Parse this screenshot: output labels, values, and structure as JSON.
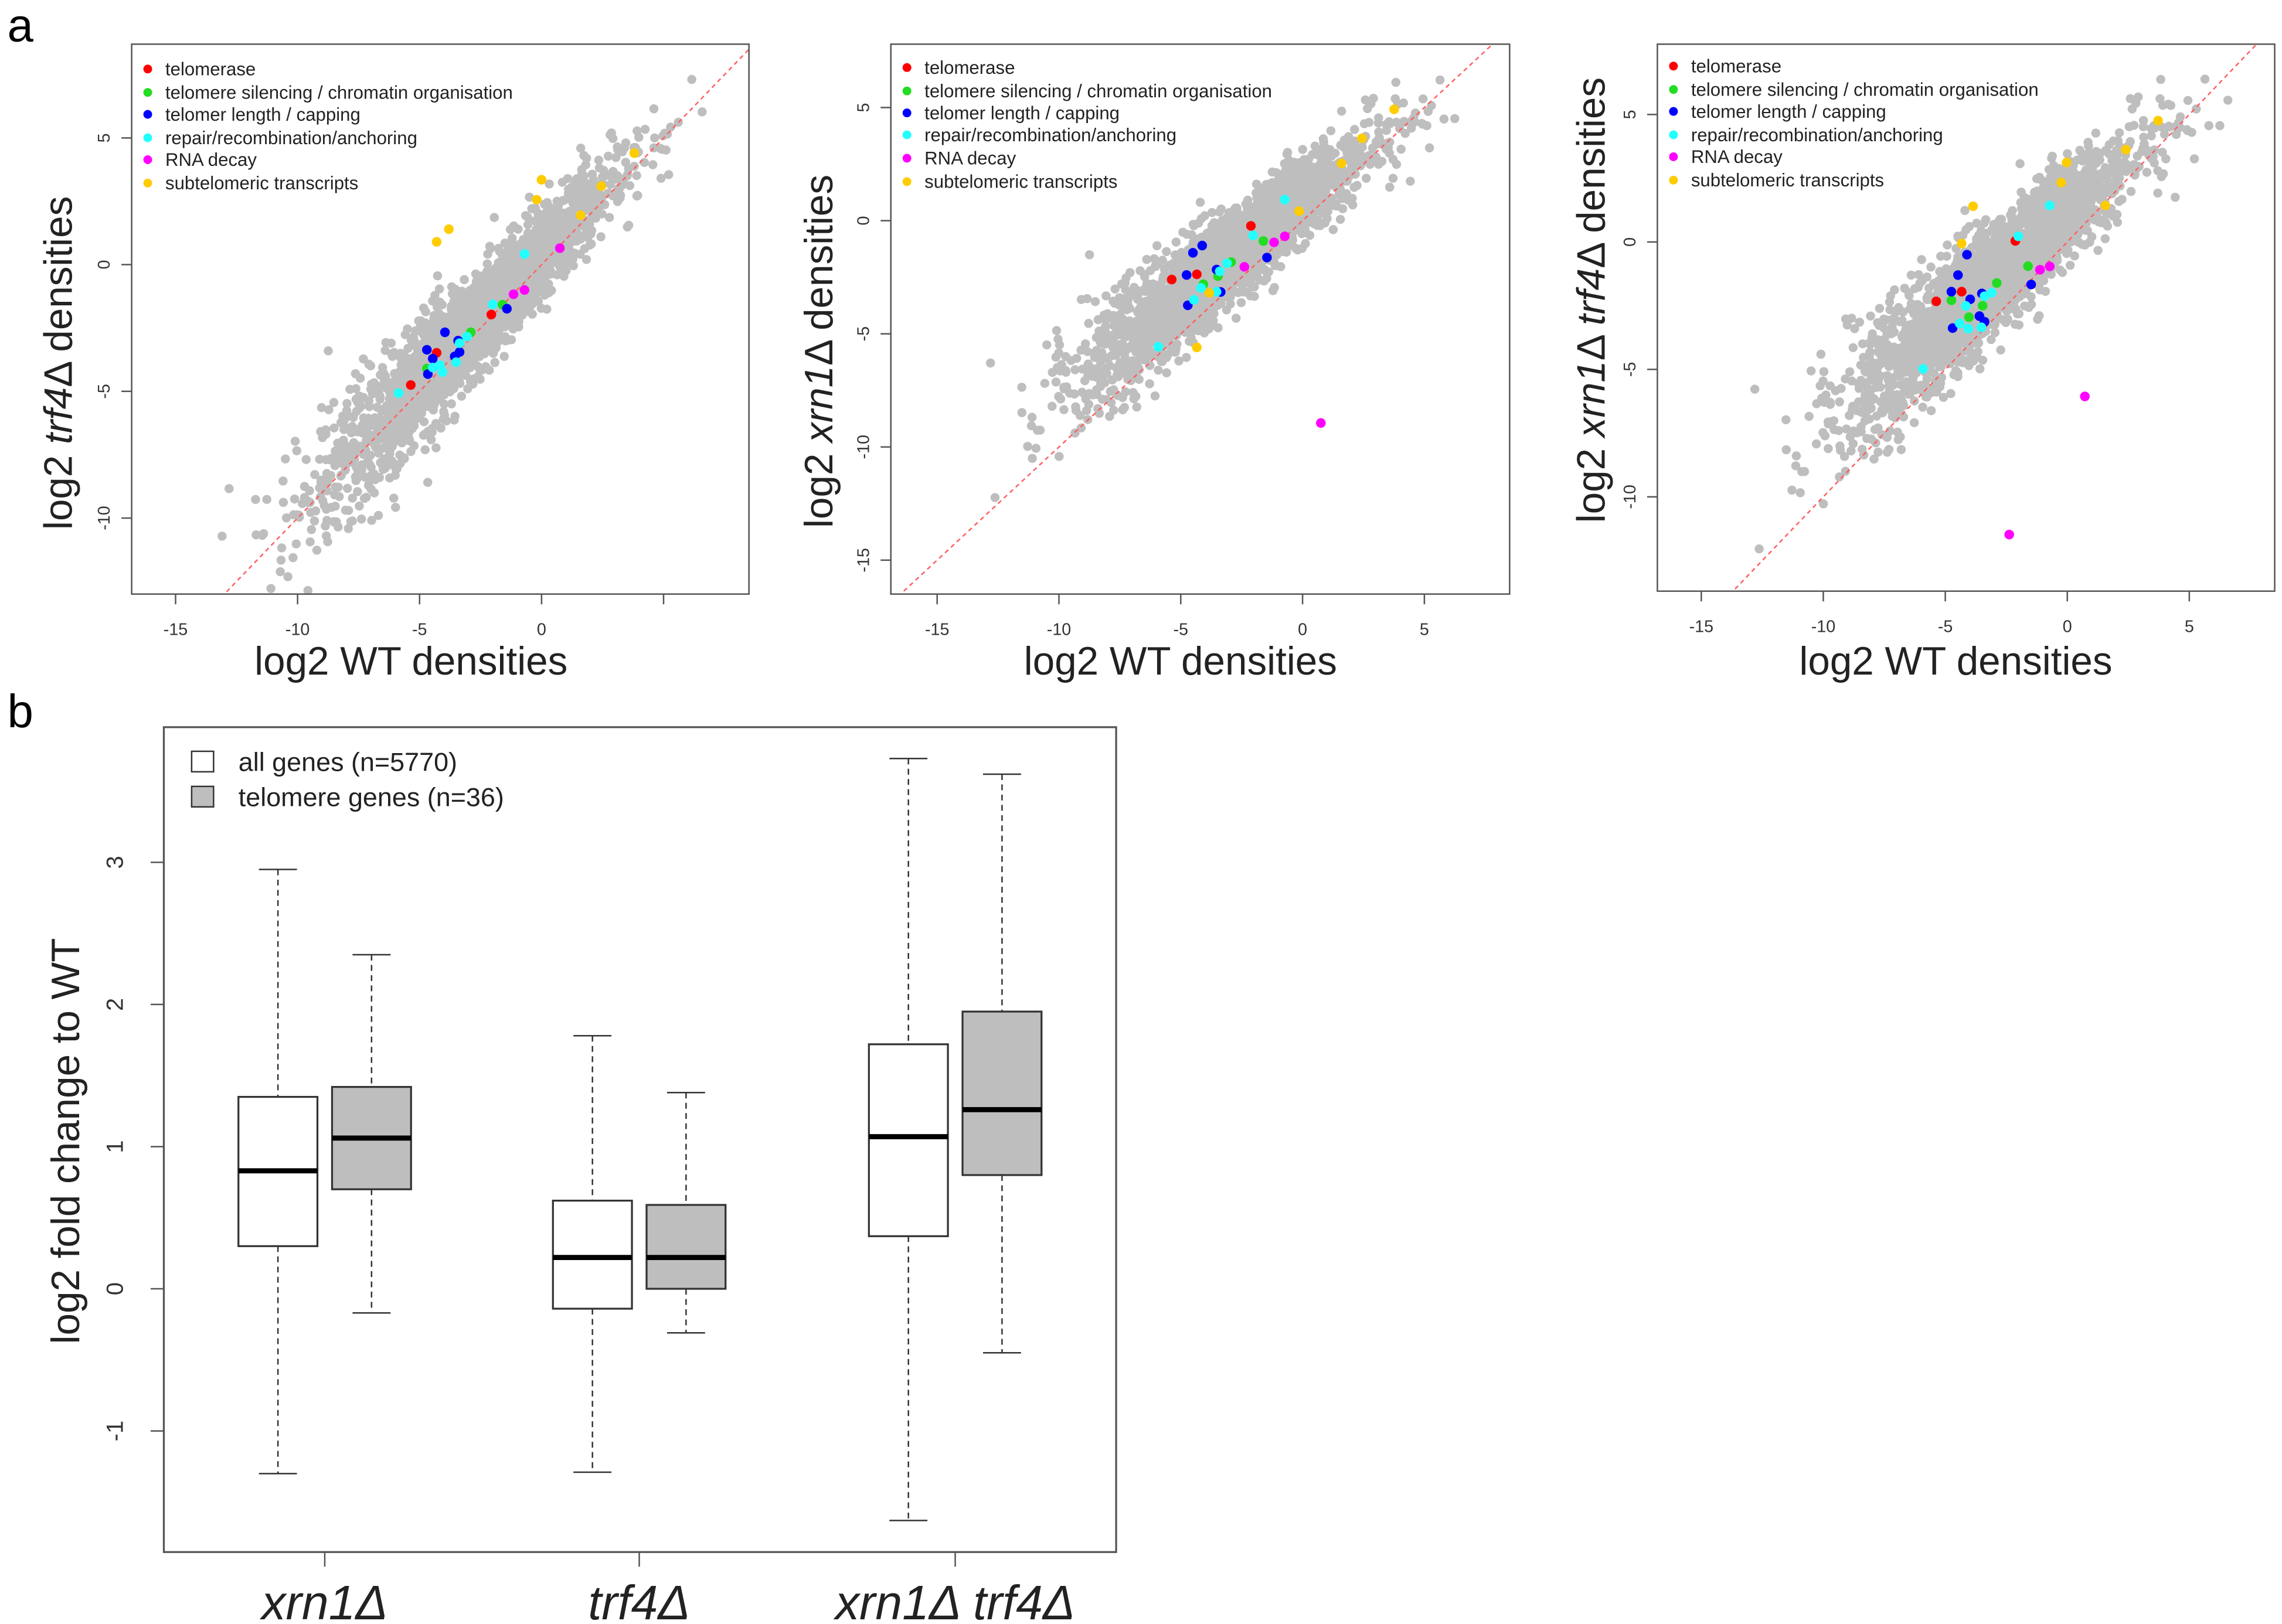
{
  "panel_labels": {
    "a": "a",
    "b": "b"
  },
  "chart_data": [
    {
      "type": "scatter",
      "xlabel": "log2 WT densities",
      "ylabel_parts": [
        {
          "t": "log2 ",
          "i": false
        },
        {
          "t": "trf4",
          "i": true
        },
        {
          "t": "Δ densities",
          "i": false
        }
      ],
      "xlim": [
        -16.8,
        8.5
      ],
      "ylim": [
        -13.0,
        8.7
      ],
      "xticks": [
        -15,
        -10,
        -5,
        0,
        5
      ],
      "xtick_labels": [
        "-15",
        "-10",
        "-5",
        "0",
        ""
      ],
      "yticks": [
        -10,
        -5,
        0,
        5
      ],
      "ytick_labels": [
        "-10",
        "-5",
        "0",
        "5"
      ],
      "reference_line": "y = x (red dashed)",
      "legend_position": "top-left",
      "background_cloud": {
        "color": "#bebebe",
        "approx_n": 5770
      },
      "series": [
        {
          "name": "telomerase",
          "color": "#ff0000",
          "points": [
            [
              -2.06,
              -1.97
            ],
            [
              -4.3,
              -3.48
            ],
            [
              -5.36,
              -4.75
            ]
          ]
        },
        {
          "name": "telomere silencing / chromatin organisation",
          "color": "#22dd22",
          "points": [
            [
              -2.9,
              -2.67
            ],
            [
              -1.6,
              -1.58
            ],
            [
              -4.7,
              -4.1
            ]
          ]
        },
        {
          "name": "telomer length / capping",
          "color": "#0000ff",
          "points": [
            [
              -1.42,
              -1.74
            ],
            [
              -3.96,
              -2.67
            ],
            [
              -4.7,
              -3.36
            ],
            [
              -4.46,
              -3.71
            ],
            [
              -3.42,
              -3.0
            ],
            [
              -3.36,
              -3.45
            ],
            [
              -4.66,
              -4.32
            ],
            [
              -3.56,
              -3.62
            ]
          ]
        },
        {
          "name": "repair/recombination/anchoring",
          "color": "#22ffff",
          "points": [
            [
              -0.7,
              0.42
            ],
            [
              -2.0,
              -1.57
            ],
            [
              -3.06,
              -2.84
            ],
            [
              -3.36,
              -3.1
            ],
            [
              -3.5,
              -3.85
            ],
            [
              -4.16,
              -3.97
            ],
            [
              -4.46,
              -4.06
            ],
            [
              -4.06,
              -4.24
            ],
            [
              -5.86,
              -5.07
            ]
          ]
        },
        {
          "name": "RNA decay",
          "color": "#ff00ff",
          "points": [
            [
              0.75,
              0.65
            ],
            [
              -0.7,
              -1.0
            ],
            [
              -1.15,
              -1.17
            ]
          ]
        },
        {
          "name": "subtelomeric transcripts",
          "color": "#ffcc00",
          "points": [
            [
              3.8,
              4.4
            ],
            [
              0,
              3.35
            ],
            [
              -0.2,
              2.56
            ],
            [
              2.45,
              3.1
            ],
            [
              1.6,
              1.95
            ],
            [
              -3.8,
              1.4
            ],
            [
              -4.3,
              0.9
            ]
          ]
        }
      ]
    },
    {
      "type": "scatter",
      "xlabel": "log2 WT densities",
      "ylabel_parts": [
        {
          "t": "log2 ",
          "i": false
        },
        {
          "t": "xrn1",
          "i": true
        },
        {
          "t": "Δ densities",
          "i": false
        }
      ],
      "xlim": [
        -16.9,
        8.5
      ],
      "ylim": [
        -16.5,
        7.8
      ],
      "xticks": [
        -15,
        -10,
        -5,
        0,
        5
      ],
      "xtick_labels": [
        "-15",
        "-10",
        "-5",
        "0",
        "5"
      ],
      "yticks": [
        -15,
        -10,
        -5,
        0,
        5
      ],
      "ytick_labels": [
        "-15",
        "-10",
        "-5",
        "0",
        "5"
      ],
      "reference_line": "y = x (red dashed)",
      "legend_position": "top-left",
      "background_cloud": {
        "color": "#bebebe",
        "approx_n": 5770
      },
      "series": [
        {
          "name": "telomerase",
          "color": "#ff0000",
          "points": [
            [
              -2.12,
              -0.23
            ],
            [
              -4.34,
              -2.37
            ],
            [
              -5.37,
              -2.6
            ]
          ]
        },
        {
          "name": "telomere silencing / chromatin organisation",
          "color": "#22dd22",
          "points": [
            [
              -1.61,
              -0.9
            ],
            [
              -2.93,
              -1.83
            ],
            [
              -3.47,
              -2.45
            ],
            [
              -4.07,
              -2.81
            ]
          ]
        },
        {
          "name": "telomer length / capping",
          "color": "#0000ff",
          "points": [
            [
              -4.12,
              -1.1
            ],
            [
              -4.5,
              -1.42
            ],
            [
              -4.76,
              -2.4
            ],
            [
              -3.53,
              -2.16
            ],
            [
              -3.36,
              -3.15
            ],
            [
              -4.71,
              -3.74
            ],
            [
              -1.46,
              -1.63
            ]
          ]
        },
        {
          "name": "repair/recombination/anchoring",
          "color": "#22ffff",
          "points": [
            [
              -0.73,
              0.93
            ],
            [
              -2.03,
              -0.65
            ],
            [
              -3.1,
              -1.88
            ],
            [
              -3.4,
              -2.24
            ],
            [
              -4.17,
              -2.97
            ],
            [
              -4.46,
              -3.5
            ],
            [
              -3.53,
              -3.14
            ],
            [
              -5.92,
              -5.57
            ]
          ]
        },
        {
          "name": "RNA decay",
          "color": "#ff00ff",
          "points": [
            [
              -0.73,
              -0.69
            ],
            [
              -1.17,
              -0.96
            ],
            [
              -2.39,
              -2.04
            ],
            [
              0.75,
              -8.94
            ]
          ]
        },
        {
          "name": "subtelomeric transcripts",
          "color": "#ffcc00",
          "points": [
            [
              3.76,
              4.92
            ],
            [
              2.44,
              3.64
            ],
            [
              1.6,
              2.53
            ],
            [
              -0.14,
              0.42
            ],
            [
              -3.83,
              -3.19
            ],
            [
              -4.34,
              -5.6
            ]
          ]
        }
      ]
    },
    {
      "type": "scatter",
      "xlabel": "log2 WT densities",
      "ylabel_parts": [
        {
          "t": "log2 ",
          "i": false
        },
        {
          "t": "xrn1",
          "i": true
        },
        {
          "t": "Δ ",
          "i": false
        },
        {
          "t": "trf4",
          "i": true
        },
        {
          "t": "Δ densities",
          "i": false
        }
      ],
      "xlim": [
        -16.8,
        8.5
      ],
      "ylim": [
        -13.7,
        7.76
      ],
      "xticks": [
        -15,
        -10,
        -5,
        0,
        5
      ],
      "xtick_labels": [
        "-15",
        "-10",
        "-5",
        "0",
        "5"
      ],
      "yticks": [
        -10,
        -5,
        0,
        5
      ],
      "ytick_labels": [
        "-10",
        "-5",
        "0",
        "5"
      ],
      "reference_line": "y = x (red dashed)",
      "legend_position": "top-left",
      "background_cloud": {
        "color": "#bebebe",
        "approx_n": 5770
      },
      "series": [
        {
          "name": "telomerase",
          "color": "#ff0000",
          "points": [
            [
              -2.13,
              0.04
            ],
            [
              -4.33,
              -1.95
            ],
            [
              -5.37,
              -2.33
            ]
          ]
        },
        {
          "name": "telomere silencing / chromatin organisation",
          "color": "#22dd22",
          "points": [
            [
              -1.61,
              -0.95
            ],
            [
              -2.89,
              -1.61
            ],
            [
              -4.75,
              -2.29
            ],
            [
              -3.47,
              -2.5
            ],
            [
              -4.03,
              -2.95
            ]
          ]
        },
        {
          "name": "telomer length / capping",
          "color": "#0000ff",
          "points": [
            [
              -4.11,
              -0.5
            ],
            [
              -4.48,
              -1.3
            ],
            [
              -4.75,
              -1.95
            ],
            [
              -3.98,
              -2.25
            ],
            [
              -3.5,
              -2.02
            ],
            [
              -3.6,
              -2.91
            ],
            [
              -3.39,
              -3.13
            ],
            [
              -4.7,
              -3.38
            ],
            [
              -1.48,
              -1.67
            ]
          ]
        },
        {
          "name": "repair/recombination/anchoring",
          "color": "#22ffff",
          "points": [
            [
              -0.72,
              1.43
            ],
            [
              -2.01,
              0.22
            ],
            [
              -3.1,
              -1.99
            ],
            [
              -3.39,
              -2.13
            ],
            [
              -4.16,
              -2.51
            ],
            [
              -4.41,
              -3.2
            ],
            [
              -4.06,
              -3.4
            ],
            [
              -3.52,
              -3.35
            ],
            [
              -5.91,
              -4.98
            ]
          ]
        },
        {
          "name": "RNA decay",
          "color": "#ff00ff",
          "points": [
            [
              -0.72,
              -0.96
            ],
            [
              -1.12,
              -1.09
            ],
            [
              0.72,
              -6.06
            ],
            [
              -2.38,
              -11.48
            ]
          ]
        },
        {
          "name": "subtelomeric transcripts",
          "color": "#ffcc00",
          "points": [
            [
              3.72,
              4.76
            ],
            [
              2.4,
              3.62
            ],
            [
              -0.03,
              3.12
            ],
            [
              -0.25,
              2.33
            ],
            [
              -3.86,
              1.4
            ],
            [
              1.56,
              1.43
            ],
            [
              -4.33,
              -0.06
            ]
          ]
        }
      ]
    },
    {
      "type": "box",
      "ylabel": "log2 fold change to WT",
      "ylim": [
        -1.85,
        3.95
      ],
      "yticks": [
        -1,
        0,
        1,
        2,
        3
      ],
      "ytick_labels": [
        "-1",
        "0",
        "1",
        "2",
        "3"
      ],
      "categories": [
        {
          "parts": [
            {
              "t": "xrn1Δ",
              "i": true
            }
          ]
        },
        {
          "parts": [
            {
              "t": "trf4Δ",
              "i": true
            }
          ]
        },
        {
          "parts": [
            {
              "t": "xrn1Δ trf4Δ",
              "i": true
            }
          ]
        }
      ],
      "legend_position": "top-left",
      "series": [
        {
          "name": "all genes (n=5770)",
          "color": "#ffffff",
          "boxes": [
            {
              "whisker_low": -1.3,
              "q1": 0.3,
              "median": 0.83,
              "q3": 1.35,
              "whisker_high": 2.95
            },
            {
              "whisker_low": -1.29,
              "q1": -0.14,
              "median": 0.22,
              "q3": 0.62,
              "whisker_high": 1.78
            },
            {
              "whisker_low": -1.63,
              "q1": 0.37,
              "median": 1.07,
              "q3": 1.72,
              "whisker_high": 3.73
            }
          ]
        },
        {
          "name": "telomere genes (n=36)",
          "color": "#bebebe",
          "boxes": [
            {
              "whisker_low": -0.17,
              "q1": 0.7,
              "median": 1.06,
              "q3": 1.42,
              "whisker_high": 2.35
            },
            {
              "whisker_low": -0.31,
              "q1": 0.0,
              "median": 0.22,
              "q3": 0.59,
              "whisker_high": 1.38
            },
            {
              "whisker_low": -0.45,
              "q1": 0.8,
              "median": 1.26,
              "q3": 1.95,
              "whisker_high": 3.62
            }
          ]
        }
      ]
    }
  ]
}
